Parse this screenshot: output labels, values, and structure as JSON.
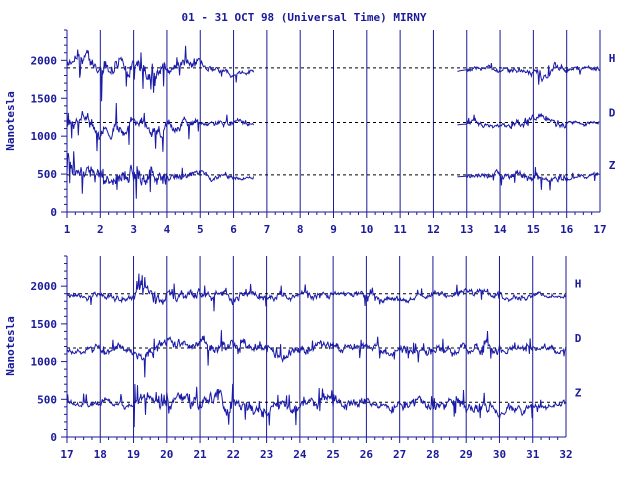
{
  "page": {
    "title": "01 - 31 OCT 98 (Universal Time) MIRNY"
  },
  "colors": {
    "axis": "#1a1a9a",
    "trace": "#1a1aa8",
    "baseline": "#000000",
    "text": "#1a1a9a"
  },
  "chart_data": [
    {
      "type": "line",
      "panel": "top",
      "ylabel": "Nanotesla",
      "xlim": [
        1,
        17
      ],
      "ylim": [
        0,
        2400
      ],
      "x_ticks": [
        "1",
        "2",
        "3",
        "4",
        "5",
        "6",
        "7",
        "8",
        "9",
        "10",
        "11",
        "12",
        "13",
        "14",
        "15",
        "16",
        "17"
      ],
      "y_ticks": [
        "0",
        "500",
        "1000",
        "1500",
        "2000"
      ],
      "y_tick_values": [
        0,
        500,
        1000,
        1500,
        2000
      ],
      "data_gap": [
        6.6,
        12.7
      ],
      "series": [
        {
          "name": "H",
          "baseline": 1900,
          "activity": [
            3.2,
            3.3,
            3.0,
            2.2,
            1.2,
            0.9,
            0.6,
            0,
            0,
            0,
            0,
            0,
            0.9,
            1.2,
            1.5,
            0.9
          ]
        },
        {
          "name": "D",
          "baseline": 1180,
          "activity": [
            2.6,
            2.6,
            2.4,
            1.6,
            1.0,
            0.8,
            0.6,
            0,
            0,
            0,
            0,
            0,
            1.0,
            1.4,
            1.3,
            0.8
          ]
        },
        {
          "name": "Z",
          "baseline": 490,
          "activity": [
            3.4,
            3.6,
            3.2,
            1.6,
            1.0,
            0.8,
            0.5,
            0,
            0,
            0,
            0,
            0,
            1.0,
            1.4,
            1.5,
            0.8
          ]
        }
      ]
    },
    {
      "type": "line",
      "panel": "bottom",
      "ylabel": "Nanotesla",
      "xlim": [
        17,
        32
      ],
      "ylim": [
        0,
        2400
      ],
      "x_ticks": [
        "17",
        "18",
        "19",
        "20",
        "21",
        "22",
        "23",
        "24",
        "25",
        "26",
        "27",
        "28",
        "29",
        "30",
        "31",
        "32"
      ],
      "y_ticks": [
        "0",
        "500",
        "1000",
        "1500",
        "2000"
      ],
      "y_tick_values": [
        0,
        500,
        1000,
        1500,
        2000
      ],
      "data_gap": null,
      "series": [
        {
          "name": "H",
          "baseline": 1900,
          "activity": [
            1.0,
            1.2,
            2.4,
            1.6,
            1.8,
            1.6,
            1.2,
            1.2,
            1.2,
            0.9,
            1.0,
            1.3,
            1.4,
            1.2,
            0.8
          ]
        },
        {
          "name": "D",
          "baseline": 1180,
          "activity": [
            1.4,
            1.4,
            2.2,
            2.0,
            2.4,
            2.2,
            1.8,
            1.8,
            1.6,
            1.2,
            1.4,
            1.8,
            1.8,
            1.4,
            1.0
          ]
        },
        {
          "name": "Z",
          "baseline": 460,
          "activity": [
            1.4,
            1.6,
            2.4,
            2.6,
            3.0,
            2.6,
            2.0,
            2.0,
            1.8,
            1.4,
            1.6,
            2.0,
            2.2,
            1.6,
            1.0
          ]
        }
      ]
    }
  ]
}
